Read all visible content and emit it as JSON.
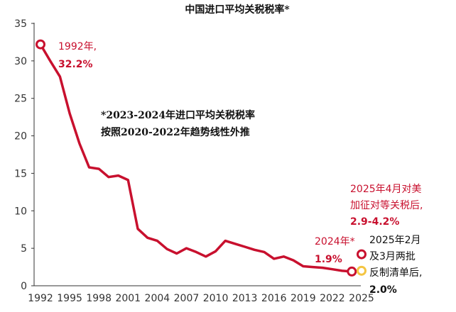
{
  "chart_data": {
    "type": "line",
    "title": "中国进口平均关税税率*",
    "xlabel": "",
    "ylabel": "",
    "ylim": [
      0,
      35
    ],
    "xlim": [
      1992,
      2025
    ],
    "yticks": [
      0,
      5,
      10,
      15,
      20,
      25,
      30,
      35
    ],
    "xticks": [
      "1992",
      "1995",
      "1998",
      "2001",
      "2004",
      "2007",
      "2010",
      "2013",
      "2016",
      "2019",
      "2022",
      "2025"
    ],
    "grid": false,
    "legend": "none",
    "series": [
      {
        "color": "#c8102e",
        "x": [
          1992,
          1993,
          1994,
          1995,
          1996,
          1997,
          1998,
          1999,
          2000,
          2001,
          2002,
          2003,
          2004,
          2005,
          2006,
          2007,
          2008,
          2009,
          2010,
          2011,
          2012,
          2013,
          2014,
          2015,
          2016,
          2017,
          2018,
          2019,
          2020,
          2021,
          2022,
          2023,
          2024
        ],
        "y": [
          32.2,
          30.0,
          27.9,
          23.0,
          19.0,
          15.8,
          15.6,
          14.5,
          14.7,
          14.1,
          7.6,
          6.4,
          6.0,
          4.9,
          4.3,
          5.0,
          4.5,
          3.9,
          4.6,
          6.0,
          5.6,
          5.2,
          4.8,
          4.5,
          3.6,
          3.9,
          3.4,
          2.6,
          2.5,
          2.4,
          2.2,
          2.0,
          1.9
        ]
      }
    ],
    "points": [
      {
        "x": 1992,
        "y": 32.2,
        "label": "1992年,",
        "value_label": "32.2%"
      },
      {
        "x": 2024,
        "y": 1.9,
        "label": "2024年*",
        "value_label": "1.9%"
      },
      {
        "x": 2025,
        "y": 4.2,
        "label": "2025年4月对美 加征对等关税后,",
        "value_label": "2.9-4.2%"
      },
      {
        "x": 2025,
        "y": 2.0,
        "label": "2025年2月 及3月两批 反制清单后,",
        "value_label": "2.0%"
      }
    ],
    "annotation": "*2023-2024年进口平均关税税率 按照2020-2022年趋势线性外推"
  },
  "labels": {
    "p1992_l1": "1992年,",
    "p1992_l2": "32.2%",
    "p2024_l1": "2024年*",
    "p2024_l2": "1.9%",
    "apr_l1": "2025年4月对美",
    "apr_l2": "加征对等关税后,",
    "apr_l3": "2.9-4.2%",
    "feb_l1": "2025年2月",
    "feb_l2": "及3月两批",
    "feb_l3": "反制清单后,",
    "feb_l4": "2.0%",
    "note_l1": "*2023-2024年进口平均关税税率",
    "note_l2": "按照2020-2022年趋势线性外推"
  },
  "colors": {
    "line": "#c8102e",
    "marker_open_red": "#c8102e",
    "marker_open_yellow": "#f4c542",
    "axis": "#333333"
  }
}
